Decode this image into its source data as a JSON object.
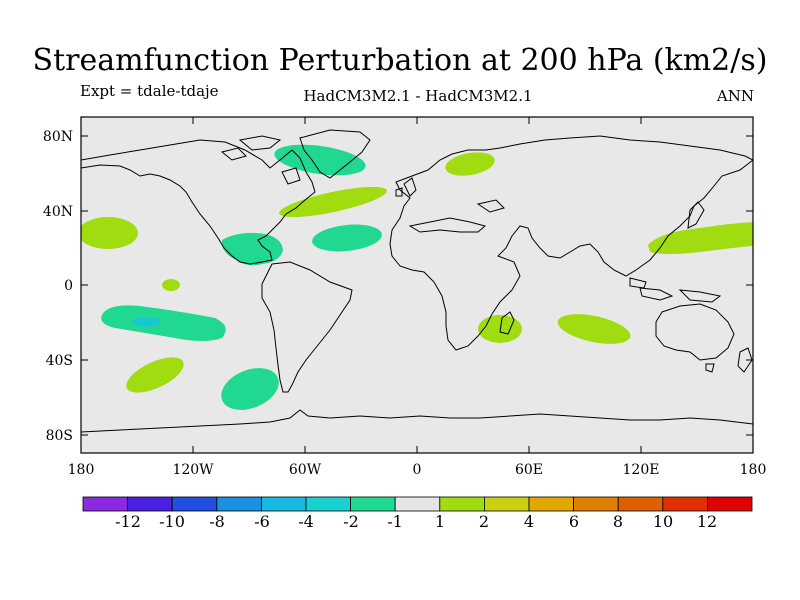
{
  "title": "Streamfunction Perturbation at 200 hPa (km2/s)",
  "subtitle_left": "Expt = tdale-tdaje",
  "subtitle_center": "HadCM3M2.1 - HadCM3M2.1",
  "subtitle_right": "ANN",
  "colors": {
    "background": "#e8e8e8",
    "coast": "#000000",
    "neg1": "#20d890",
    "neg2": "#18c8d0",
    "pos1": "#a0dc10",
    "pos2": "#c8d010"
  },
  "lat_labels": [
    "80N",
    "40N",
    "0",
    "40S",
    "80S"
  ],
  "lon_labels": [
    "180",
    "120W",
    "60W",
    "0",
    "60E",
    "120E",
    "180"
  ],
  "colorbar": {
    "colors": [
      "#8a2be2",
      "#4b20e0",
      "#2050e0",
      "#1a90e0",
      "#18b8e0",
      "#18d0d0",
      "#20d890",
      "#e6e6e6",
      "#a0dc10",
      "#c8d010",
      "#e0a800",
      "#e08000",
      "#e06000",
      "#e03000",
      "#e00000"
    ],
    "labels": [
      "-12",
      "-10",
      "-8",
      "-6",
      "-4",
      "-2",
      "-1",
      "1",
      "2",
      "4",
      "6",
      "8",
      "10",
      "12"
    ]
  },
  "anomalies": [
    {
      "region": "Arctic Canada",
      "lon": -67,
      "lat": 68,
      "value": -2
    },
    {
      "region": "Scandinavia",
      "lon": 27,
      "lat": 67,
      "value": 2
    },
    {
      "region": "North Atlantic",
      "lon": -45,
      "lat": 45,
      "value": 2
    },
    {
      "region": "Central Atlantic",
      "lon": -38,
      "lat": 26,
      "value": -2
    },
    {
      "region": "Caribbean",
      "lon": -85,
      "lat": 22,
      "value": -2
    },
    {
      "region": "NE Pacific",
      "lon": -173,
      "lat": 29,
      "value": 2
    },
    {
      "region": "East Asia",
      "lon": 152,
      "lat": 25,
      "value": 2
    },
    {
      "region": "Equatorial Pacific",
      "lon": -133,
      "lat": 1,
      "value": 2
    },
    {
      "region": "South Pacific",
      "lon": -133,
      "lat": -20,
      "value": -2
    },
    {
      "region": "South Pacific core",
      "lon": -140,
      "lat": -20,
      "value": -4
    },
    {
      "region": "SE Pacific",
      "lon": -145,
      "lat": -53,
      "value": 2
    },
    {
      "region": "South America SW",
      "lon": -90,
      "lat": -58,
      "value": -2
    },
    {
      "region": "Madagascar",
      "lon": 45,
      "lat": -22,
      "value": 2
    },
    {
      "region": "Indian Ocean",
      "lon": 95,
      "lat": -23,
      "value": 2
    }
  ]
}
